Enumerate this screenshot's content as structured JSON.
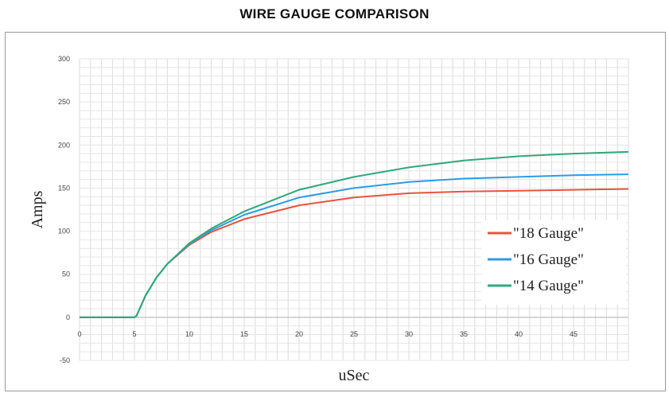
{
  "chart_data": {
    "type": "line",
    "title": "WIRE GAUGE COMPARISON",
    "xlabel": "uSec",
    "ylabel": "Amps",
    "xlim": [
      0,
      50
    ],
    "ylim": [
      -50,
      300
    ],
    "xticks": [
      0,
      5,
      10,
      15,
      20,
      25,
      30,
      35,
      40,
      45
    ],
    "yticks": [
      -50,
      0,
      50,
      100,
      150,
      200,
      250,
      300
    ],
    "grid": true,
    "legend_position": "right",
    "x": [
      0,
      5,
      5.2,
      6,
      7,
      8,
      10,
      12,
      15,
      20,
      25,
      30,
      35,
      40,
      45,
      50
    ],
    "series": [
      {
        "name": "\"18 Gauge\"",
        "color": "#e8543f",
        "values": [
          0,
          0,
          2,
          25,
          46,
          62,
          84,
          99,
          114,
          130,
          139,
          144,
          146,
          147,
          148,
          149
        ]
      },
      {
        "name": "\"16 Gauge\"",
        "color": "#2e9be6",
        "values": [
          0,
          0,
          2,
          25,
          46,
          62,
          85,
          101,
          119,
          139,
          150,
          157,
          161,
          163,
          165,
          166
        ]
      },
      {
        "name": "\"14 Gauge\"",
        "color": "#2fa87a",
        "values": [
          0,
          0,
          2,
          25,
          46,
          62,
          86,
          103,
          123,
          148,
          163,
          174,
          182,
          187,
          190,
          192
        ]
      }
    ]
  }
}
